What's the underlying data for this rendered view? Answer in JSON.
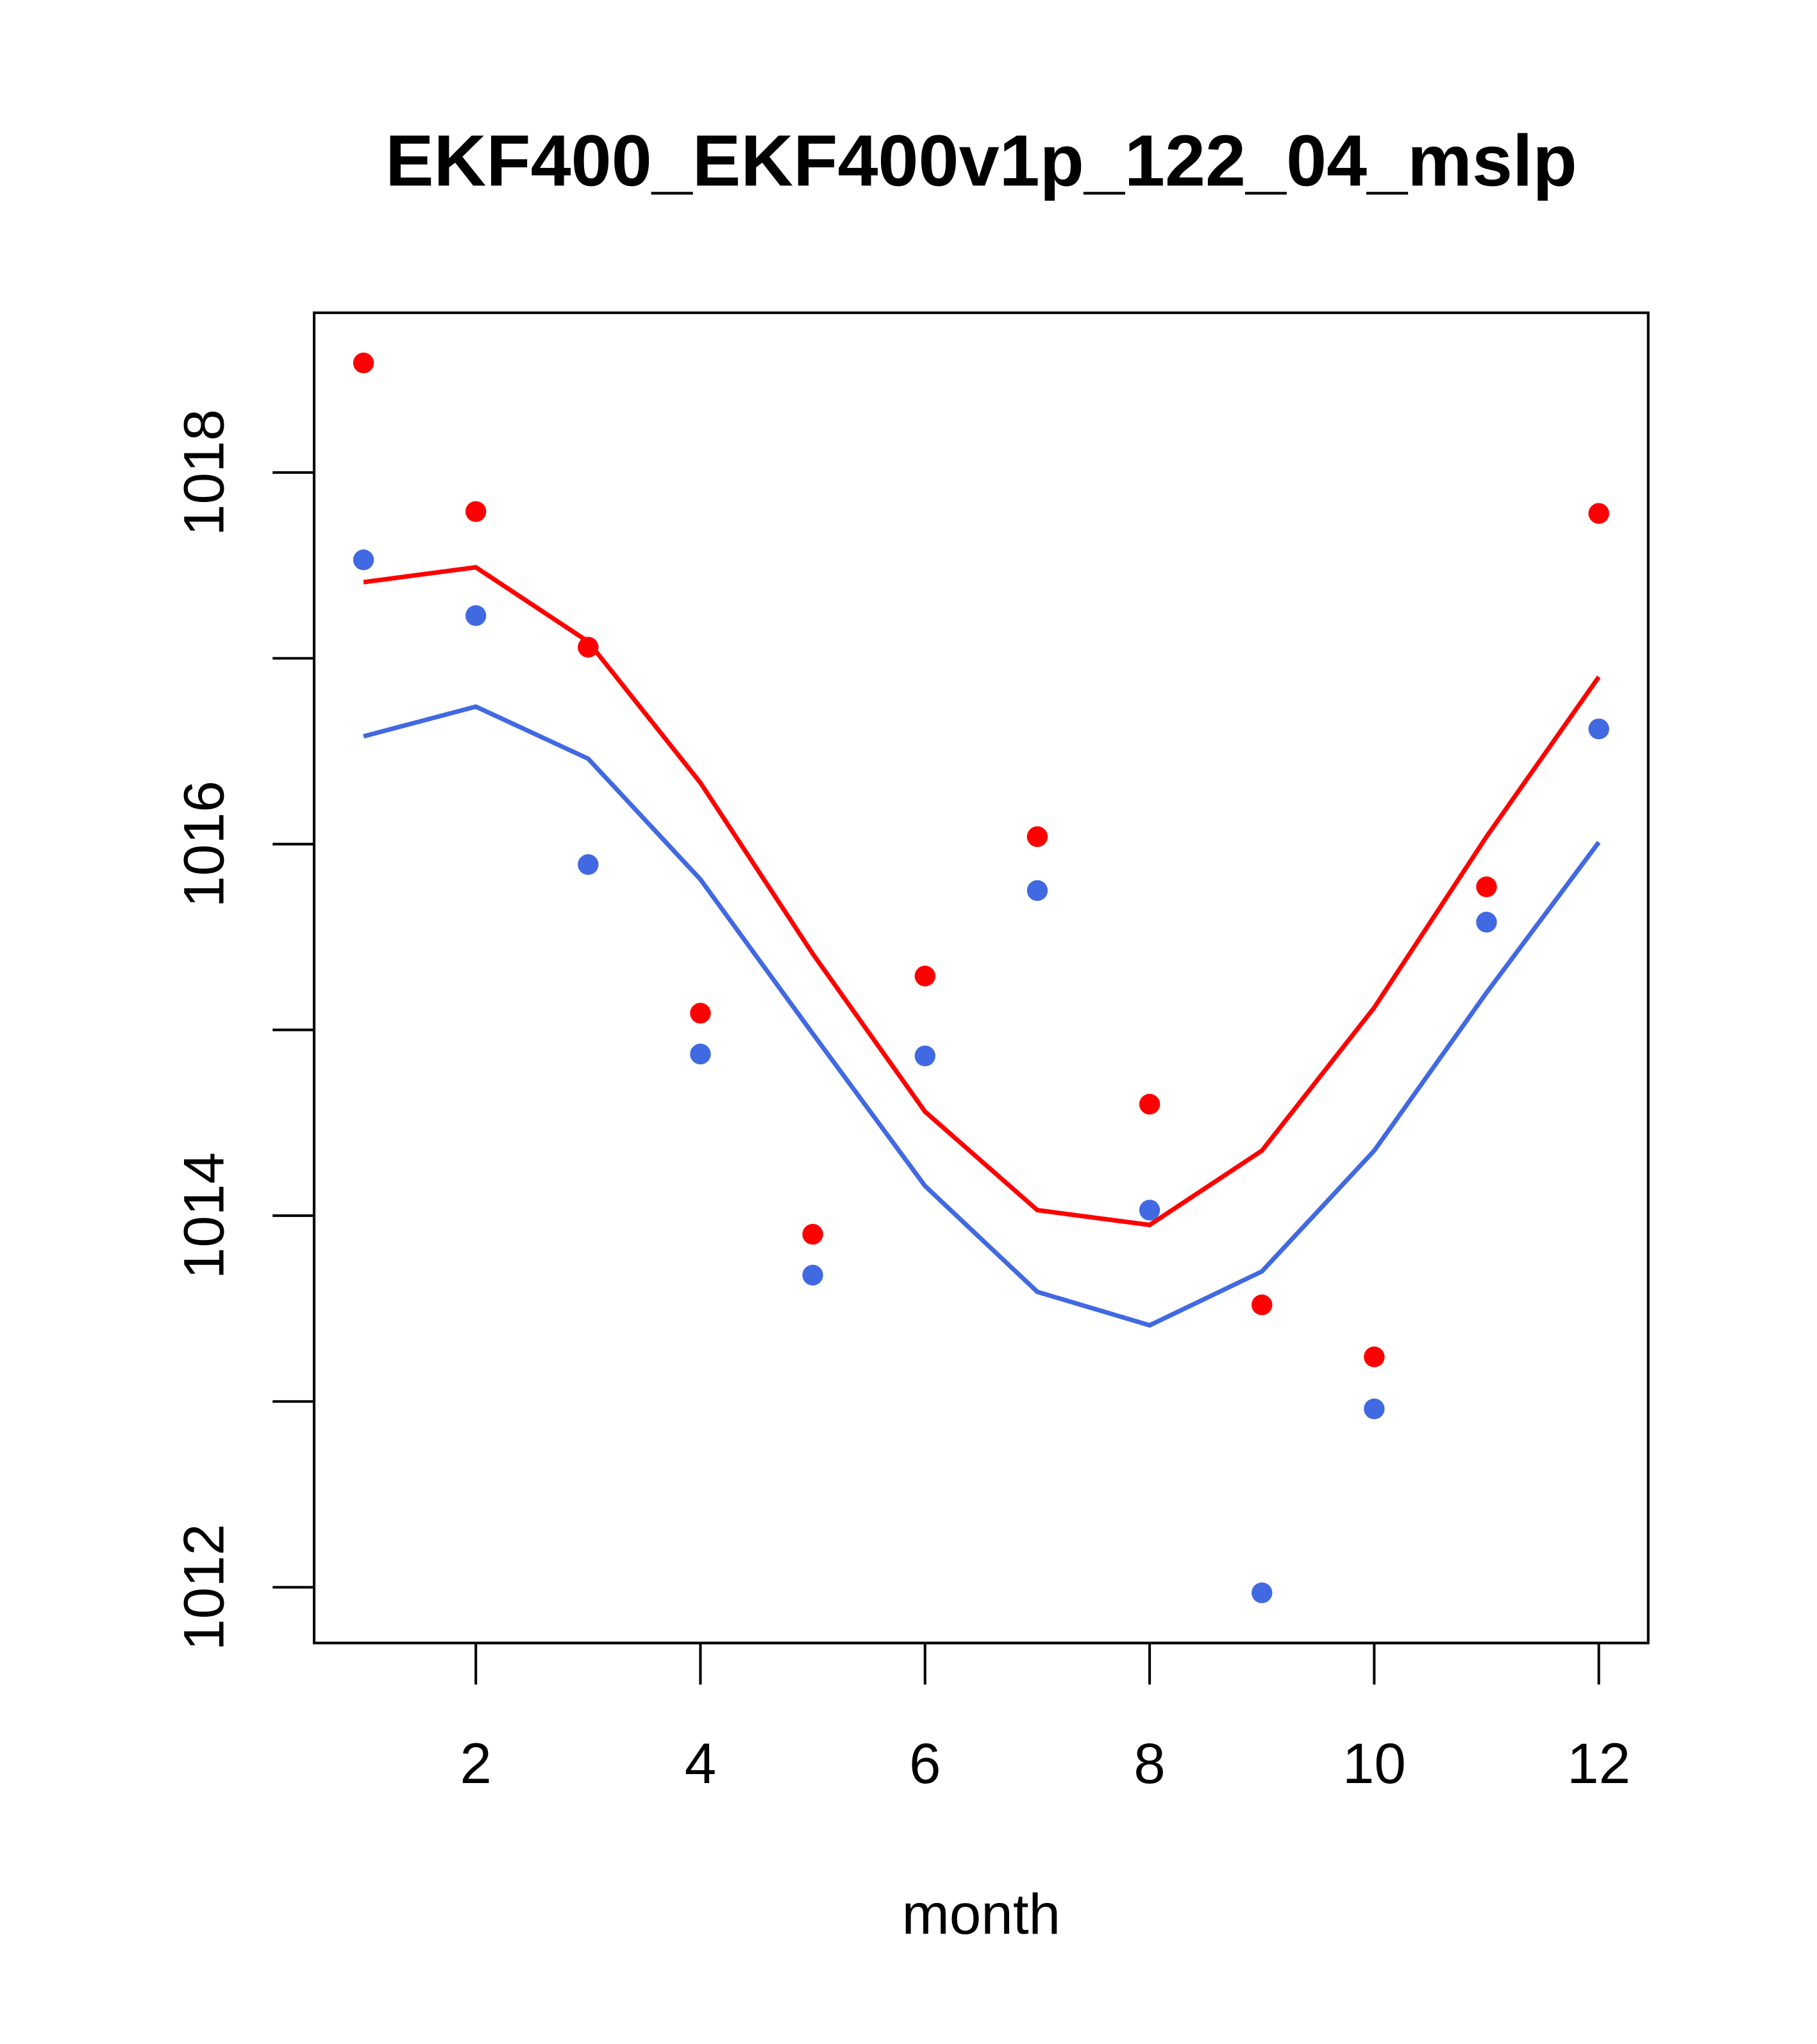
{
  "chart_data": {
    "type": "line",
    "title": "EKF400_EKF400v1p_122_04_mslp",
    "xlabel": "month",
    "ylabel": "",
    "xlim": [
      0.56,
      12.44
    ],
    "ylim": [
      1011.7,
      1018.86
    ],
    "xticks": [
      2,
      4,
      6,
      8,
      10,
      12
    ],
    "yticks": [
      1012,
      1014,
      1016,
      1018
    ],
    "yminor_ticks": [
      1013,
      1015,
      1017
    ],
    "grid": false,
    "x": [
      1,
      2,
      3,
      4,
      5,
      6,
      7,
      8,
      9,
      10,
      11,
      12
    ],
    "series": [
      {
        "name": "red points",
        "kind": "points",
        "color": "#ff0000",
        "values": [
          1018.59,
          1017.79,
          1017.06,
          1015.09,
          1013.9,
          1015.29,
          1016.04,
          1014.6,
          1013.52,
          1013.24,
          1015.77,
          1017.78
        ]
      },
      {
        "name": "blue points",
        "kind": "points",
        "color": "#4169e1",
        "values": [
          1017.53,
          1017.23,
          1015.89,
          1014.87,
          1013.68,
          1014.86,
          1015.75,
          1014.03,
          1011.97,
          1012.96,
          1015.58,
          1016.62
        ]
      },
      {
        "name": "red line",
        "kind": "line",
        "color": "#ff0000",
        "values": [
          1017.41,
          1017.49,
          1017.09,
          1016.33,
          1015.41,
          1014.56,
          1014.03,
          1013.95,
          1014.35,
          1015.12,
          1016.04,
          1016.9
        ]
      },
      {
        "name": "blue line",
        "kind": "line",
        "color": "#4169e1",
        "values": [
          1016.58,
          1016.74,
          1016.46,
          1015.81,
          1014.98,
          1014.16,
          1013.59,
          1013.41,
          1013.7,
          1014.35,
          1015.2,
          1016.01
        ]
      }
    ]
  }
}
